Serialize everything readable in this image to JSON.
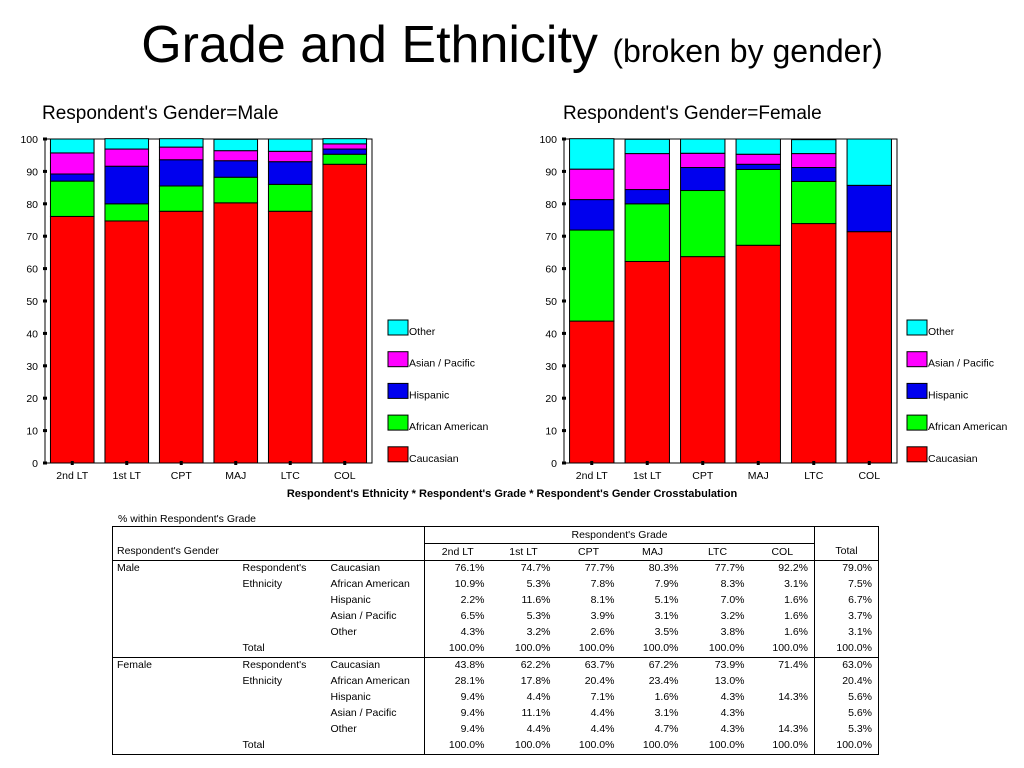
{
  "slide": {
    "title": "Grade and Ethnicity",
    "subtitle": "(broken by gender)"
  },
  "colors": {
    "Caucasian": "#ff0000",
    "African American": "#00ff00",
    "Hispanic": "#0000ee",
    "Asian / Pacific": "#ff00ff",
    "Other": "#00ffff"
  },
  "chart_data": [
    {
      "type": "bar",
      "stacked": true,
      "title": "Respondent's Gender=Male",
      "categories": [
        "2nd LT",
        "1st LT",
        "CPT",
        "MAJ",
        "LTC",
        "COL"
      ],
      "ylim": [
        0,
        100
      ],
      "yticks": [
        0,
        10,
        20,
        30,
        40,
        50,
        60,
        70,
        80,
        90,
        100
      ],
      "legend": "right",
      "series": [
        {
          "name": "Caucasian",
          "values": [
            76.1,
            74.7,
            77.7,
            80.3,
            77.7,
            92.2
          ]
        },
        {
          "name": "African American",
          "values": [
            10.9,
            5.3,
            7.8,
            7.9,
            8.3,
            3.1
          ]
        },
        {
          "name": "Hispanic",
          "values": [
            2.2,
            11.6,
            8.1,
            5.1,
            7.0,
            1.6
          ]
        },
        {
          "name": "Asian / Pacific",
          "values": [
            6.5,
            5.3,
            3.9,
            3.1,
            3.2,
            1.6
          ]
        },
        {
          "name": "Other",
          "values": [
            4.3,
            3.2,
            2.6,
            3.5,
            3.8,
            1.6
          ]
        }
      ]
    },
    {
      "type": "bar",
      "stacked": true,
      "title": "Respondent's Gender=Female",
      "categories": [
        "2nd LT",
        "1st LT",
        "CPT",
        "MAJ",
        "LTC",
        "COL"
      ],
      "ylim": [
        0,
        100
      ],
      "yticks": [
        0,
        10,
        20,
        30,
        40,
        50,
        60,
        70,
        80,
        90,
        100
      ],
      "legend": "right",
      "series": [
        {
          "name": "Caucasian",
          "values": [
            43.8,
            62.2,
            63.7,
            67.2,
            73.9,
            71.4
          ]
        },
        {
          "name": "African American",
          "values": [
            28.1,
            17.8,
            20.4,
            23.4,
            13.0,
            0
          ]
        },
        {
          "name": "Hispanic",
          "values": [
            9.4,
            4.4,
            7.1,
            1.6,
            4.3,
            14.3
          ]
        },
        {
          "name": "Asian / Pacific",
          "values": [
            9.4,
            11.1,
            4.4,
            3.1,
            4.3,
            0
          ]
        },
        {
          "name": "Other",
          "values": [
            9.4,
            4.4,
            4.4,
            4.7,
            4.3,
            14.3
          ]
        }
      ]
    }
  ],
  "legend_order": [
    "Other",
    "Asian / Pacific",
    "Hispanic",
    "African American",
    "Caucasian"
  ],
  "crosstab": {
    "title": "Respondent's Ethnicity * Respondent's Grade * Respondent's Gender Crosstabulation",
    "subtitle": "% within Respondent's Grade",
    "grade_header": "Respondent's Grade",
    "row_header": "Respondent's Gender",
    "total_header": "Total",
    "columns": [
      "2nd LT",
      "1st LT",
      "CPT",
      "MAJ",
      "LTC",
      "COL"
    ],
    "ethnicity_label": [
      "Respondent's",
      "Ethnicity"
    ],
    "groups": [
      {
        "gender": "Male",
        "rows": [
          {
            "label": "Caucasian",
            "values": [
              "76.1%",
              "74.7%",
              "77.7%",
              "80.3%",
              "77.7%",
              "92.2%"
            ],
            "total": "79.0%"
          },
          {
            "label": "African American",
            "values": [
              "10.9%",
              "5.3%",
              "7.8%",
              "7.9%",
              "8.3%",
              "3.1%"
            ],
            "total": "7.5%"
          },
          {
            "label": "Hispanic",
            "values": [
              "2.2%",
              "11.6%",
              "8.1%",
              "5.1%",
              "7.0%",
              "1.6%"
            ],
            "total": "6.7%"
          },
          {
            "label": "Asian / Pacific",
            "values": [
              "6.5%",
              "5.3%",
              "3.9%",
              "3.1%",
              "3.2%",
              "1.6%"
            ],
            "total": "3.7%"
          },
          {
            "label": "Other",
            "values": [
              "4.3%",
              "3.2%",
              "2.6%",
              "3.5%",
              "3.8%",
              "1.6%"
            ],
            "total": "3.1%"
          }
        ],
        "total_row": {
          "label": "Total",
          "values": [
            "100.0%",
            "100.0%",
            "100.0%",
            "100.0%",
            "100.0%",
            "100.0%"
          ],
          "total": "100.0%"
        }
      },
      {
        "gender": "Female",
        "rows": [
          {
            "label": "Caucasian",
            "values": [
              "43.8%",
              "62.2%",
              "63.7%",
              "67.2%",
              "73.9%",
              "71.4%"
            ],
            "total": "63.0%"
          },
          {
            "label": "African American",
            "values": [
              "28.1%",
              "17.8%",
              "20.4%",
              "23.4%",
              "13.0%",
              ""
            ],
            "total": "20.4%"
          },
          {
            "label": "Hispanic",
            "values": [
              "9.4%",
              "4.4%",
              "7.1%",
              "1.6%",
              "4.3%",
              "14.3%"
            ],
            "total": "5.6%"
          },
          {
            "label": "Asian / Pacific",
            "values": [
              "9.4%",
              "11.1%",
              "4.4%",
              "3.1%",
              "4.3%",
              ""
            ],
            "total": "5.6%"
          },
          {
            "label": "Other",
            "values": [
              "9.4%",
              "4.4%",
              "4.4%",
              "4.7%",
              "4.3%",
              "14.3%"
            ],
            "total": "5.3%"
          }
        ],
        "total_row": {
          "label": "Total",
          "values": [
            "100.0%",
            "100.0%",
            "100.0%",
            "100.0%",
            "100.0%",
            "100.0%"
          ],
          "total": "100.0%"
        }
      }
    ]
  }
}
